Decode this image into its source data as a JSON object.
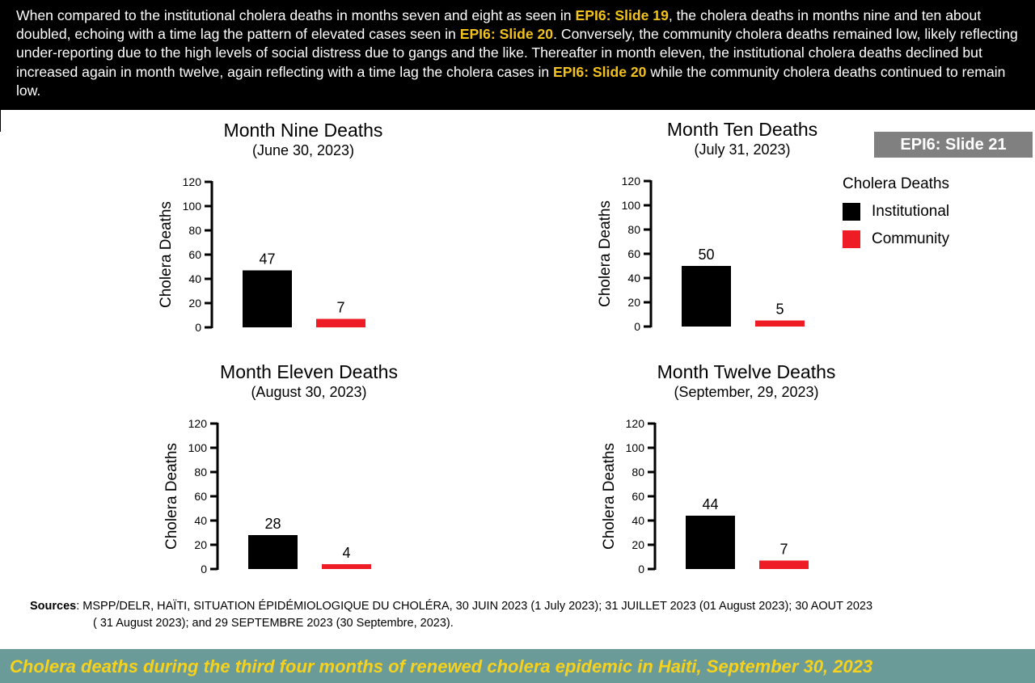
{
  "banner": {
    "segments": [
      {
        "text": "When compared to the institutional cholera deaths in months seven and eight as seen in ",
        "highlight": false
      },
      {
        "text": "EPI6: Slide 19",
        "highlight": true
      },
      {
        "text": ", the cholera deaths in months nine and ten about doubled, echoing with a time lag the pattern of elevated cases seen in ",
        "highlight": false
      },
      {
        "text": "EPI6: Slide 20",
        "highlight": true
      },
      {
        "text": ". Conversely, the community cholera deaths remained low, likely reflecting under-reporting due to the high levels of social distress due to gangs and the like. Thereafter in month eleven, the institutional cholera deaths declined but increased again in month twelve, again reflecting with a time lag the cholera cases in ",
        "highlight": false
      },
      {
        "text": "EPI6: Slide 20",
        "highlight": true
      },
      {
        "text": " while the community cholera deaths continued to remain low.",
        "highlight": false
      }
    ]
  },
  "slide_badge": "EPI6: Slide 21",
  "legend": {
    "title": "Cholera Deaths",
    "items": [
      {
        "label": "Institutional",
        "color": "#000000"
      },
      {
        "label": "Community",
        "color": "#ee1c25"
      }
    ]
  },
  "chart_data": [
    {
      "type": "bar",
      "title": "Month Nine Deaths",
      "subtitle": "(June 30, 2023)",
      "ylabel": "Cholera Deaths",
      "xlabel": "",
      "categories": [
        "Institutional",
        "Community"
      ],
      "values": [
        47,
        7
      ],
      "ylim": [
        0,
        120
      ],
      "yticks": [
        0,
        20,
        40,
        60,
        80,
        100,
        120
      ],
      "colors": [
        "#000000",
        "#ee1c25"
      ],
      "grid": false
    },
    {
      "type": "bar",
      "title": "Month Ten Deaths",
      "subtitle": "(July 31, 2023)",
      "ylabel": "Cholera Deaths",
      "xlabel": "",
      "categories": [
        "Institutional",
        "Community"
      ],
      "values": [
        50,
        5
      ],
      "ylim": [
        0,
        120
      ],
      "yticks": [
        0,
        20,
        40,
        60,
        80,
        100,
        120
      ],
      "colors": [
        "#000000",
        "#ee1c25"
      ],
      "grid": false
    },
    {
      "type": "bar",
      "title": "Month Eleven Deaths",
      "subtitle": "(August 30, 2023)",
      "ylabel": "Cholera Deaths",
      "xlabel": "",
      "categories": [
        "Institutional",
        "Community"
      ],
      "values": [
        28,
        4
      ],
      "ylim": [
        0,
        120
      ],
      "yticks": [
        0,
        20,
        40,
        60,
        80,
        100,
        120
      ],
      "colors": [
        "#000000",
        "#ee1c25"
      ],
      "grid": false
    },
    {
      "type": "bar",
      "title": "Month Twelve Deaths",
      "subtitle": "(September, 29, 2023)",
      "ylabel": "Cholera Deaths",
      "xlabel": "",
      "categories": [
        "Institutional",
        "Community"
      ],
      "values": [
        44,
        7
      ],
      "ylim": [
        0,
        120
      ],
      "yticks": [
        0,
        20,
        40,
        60,
        80,
        100,
        120
      ],
      "colors": [
        "#000000",
        "#ee1c25"
      ],
      "grid": false
    }
  ],
  "sources": {
    "label": "Sources",
    "line1": ": MSPP/DELR, HAÏTI, SITUATION ÉPIDÉMIOLOGIQUE DU CHOLÉRA,  30 JUIN 2023 (1 July 2023); 31 JUILLET 2023 (01 August 2023); 30 AOUT 2023",
    "line2": "( 31 August 2023); and  29 SEPTEMBRE 2023 (30 Septembre, 2023)."
  },
  "footer_title": "Cholera deaths during the third four months of renewed cholera epidemic in Haiti,  September 30, 2023"
}
